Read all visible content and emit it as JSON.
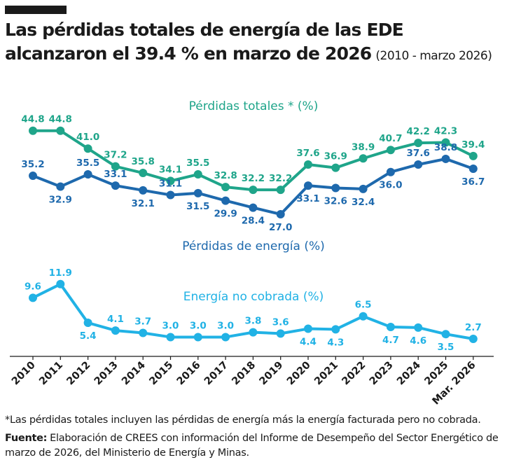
{
  "header": {
    "title": "Las pérdidas totales de energía de las EDE alcanzaron el 39.4  % en marzo de 2026",
    "subtitle": "(2010 - marzo 2026)"
  },
  "footnote": "*Las pérdidas totales incluyen las pérdidas de energía más la energía facturada pero no cobrada.",
  "source": {
    "label": "Fuente:",
    "text": "Elaboración de CREES con información del Informe de Desempeño del Sector Energético de marzo de 2026, del Ministerio de Energía y Minas."
  },
  "colors": {
    "perdidas_totales": "#1fa58a",
    "perdidas_energia": "#1e69ad",
    "energia_no_cobrada": "#21b2e5"
  },
  "chart_data": {
    "type": "line",
    "categories": [
      "2010",
      "2011",
      "2012",
      "2013",
      "2014",
      "2015",
      "2016",
      "2017",
      "2018",
      "2019",
      "2020",
      "2021",
      "2022",
      "2023",
      "2024",
      "2025",
      "Mar. 2026"
    ],
    "series": [
      {
        "name": "Pérdidas totales * (%)",
        "color": "#1fa58a",
        "values": [
          44.8,
          44.8,
          41.0,
          37.2,
          35.8,
          34.1,
          35.5,
          32.8,
          32.2,
          32.2,
          37.6,
          36.9,
          38.9,
          40.7,
          42.2,
          42.3,
          39.4
        ]
      },
      {
        "name": "Pérdidas de energía (%)",
        "color": "#1e69ad",
        "values": [
          35.2,
          32.9,
          35.5,
          33.1,
          32.1,
          31.1,
          31.5,
          29.9,
          28.4,
          27.0,
          33.1,
          32.6,
          32.4,
          36.0,
          37.6,
          38.8,
          36.7
        ]
      },
      {
        "name": "Energía no cobrada (%)",
        "color": "#21b2e5",
        "values": [
          9.6,
          11.9,
          5.4,
          4.1,
          3.7,
          3.0,
          3.0,
          3.0,
          3.8,
          3.6,
          4.4,
          4.3,
          6.5,
          4.7,
          4.6,
          3.5,
          2.7
        ]
      }
    ],
    "xlabel": "",
    "ylabel": "",
    "grid": false
  }
}
